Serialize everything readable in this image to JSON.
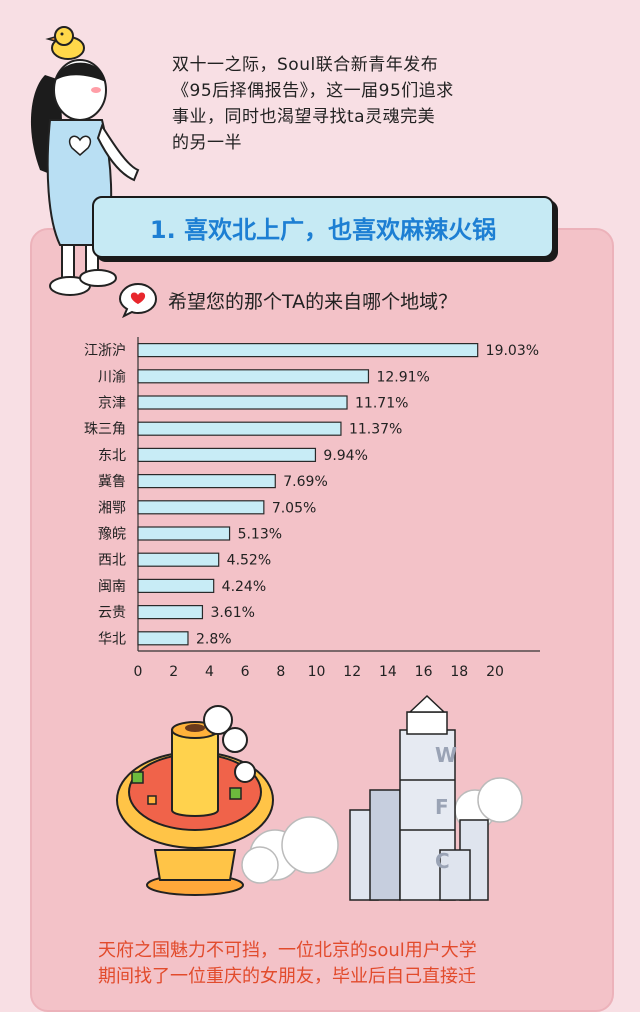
{
  "intro": {
    "line1": "双十一之际，Soul联合新青年发布",
    "line2": "《95后择偶报告》，这一届95们追求",
    "line3": "事业，同时也渴望寻找ta灵魂完美",
    "line4": "的另一半"
  },
  "banner": {
    "title": "1. 喜欢北上广，也喜欢麻辣火锅"
  },
  "question": {
    "text": "希望您的那个TA的来自哪个地域？"
  },
  "illustration": {
    "tower_letters": [
      "W",
      "F",
      "C"
    ]
  },
  "bottom": {
    "line1": "天府之国魅力不可挡，一位北京的soul用户大学",
    "line2": "期间找了一位重庆的女朋友，毕业后自己直接迁"
  },
  "colors": {
    "background": "#f8dfe4",
    "card": "#f3c2c8",
    "bar_fill": "#c8ecf6",
    "bar_stroke": "#2a2a2a",
    "banner_text": "#1d7fd3",
    "accent_red": "#e24b2c"
  },
  "chart_data": {
    "type": "bar",
    "orientation": "horizontal",
    "categories": [
      "江浙沪",
      "川渝",
      "京津",
      "珠三角",
      "东北",
      "冀鲁",
      "湘鄂",
      "豫皖",
      "西北",
      "闽南",
      "云贵",
      "华北"
    ],
    "values": [
      19.03,
      12.91,
      11.71,
      11.37,
      9.94,
      7.69,
      7.05,
      5.13,
      4.52,
      4.24,
      3.61,
      2.8
    ],
    "value_labels": [
      "19.03%",
      "12.91%",
      "11.71%",
      "11.37%",
      "9.94%",
      "7.69%",
      "7.05%",
      "5.13%",
      "4.52%",
      "4.24%",
      "3.61%",
      "2.8%"
    ],
    "xlim": [
      0,
      20
    ],
    "xticks": [
      0,
      2,
      4,
      6,
      8,
      10,
      12,
      14,
      16,
      18,
      20
    ],
    "grid": false
  }
}
